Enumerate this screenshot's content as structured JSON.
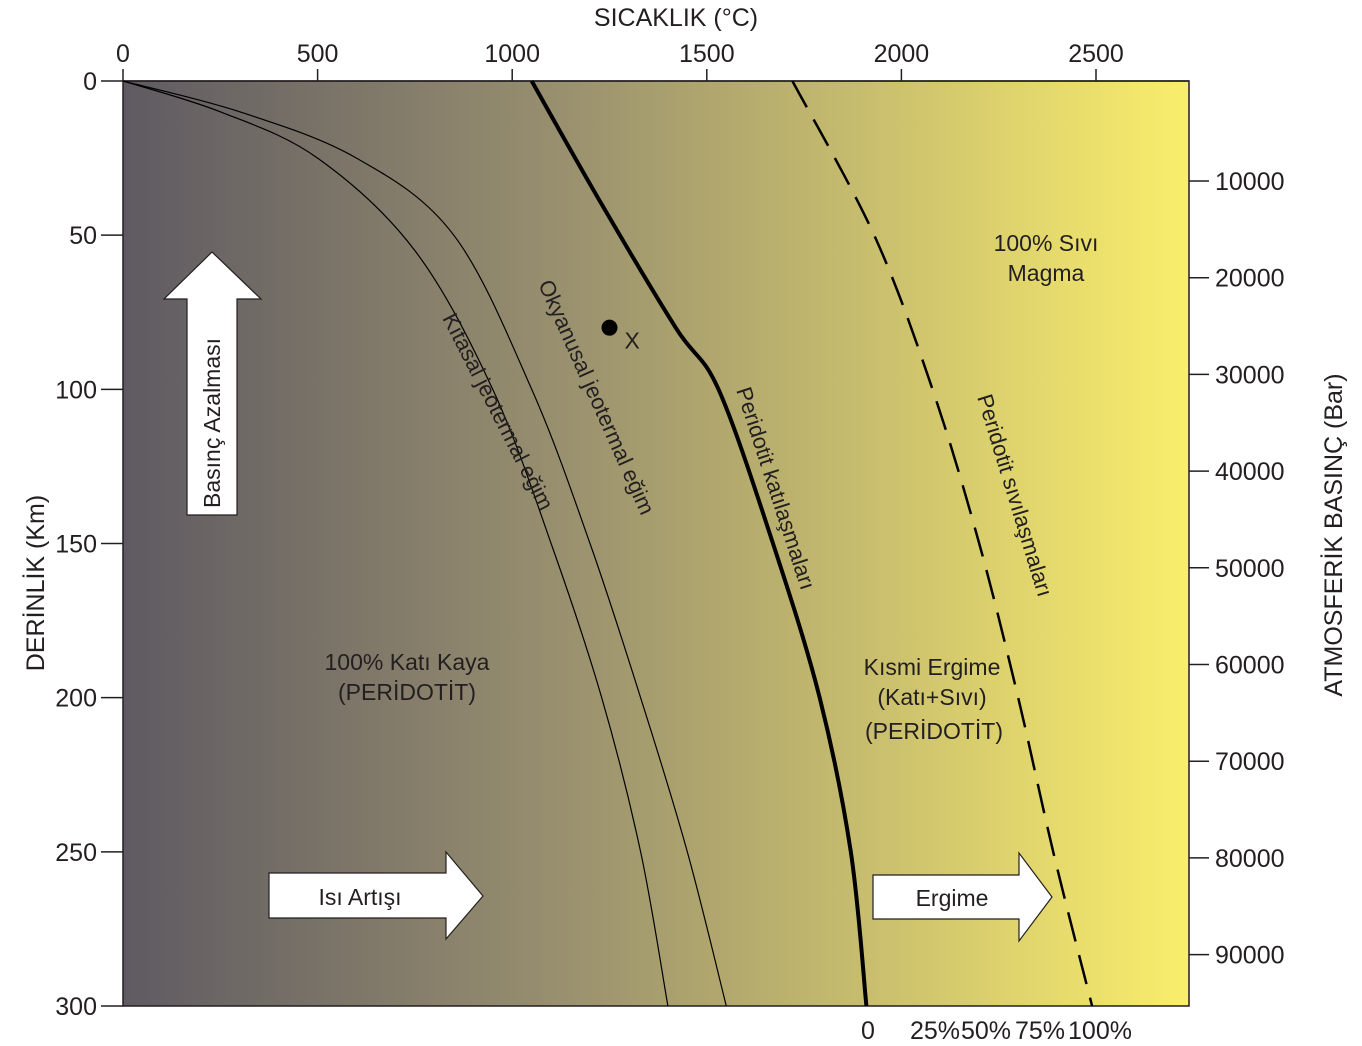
{
  "top_axis": {
    "title": "SICAKLIK (°C)",
    "ticks": [
      "0",
      "500",
      "1000",
      "1500",
      "2000",
      "2500"
    ]
  },
  "left_axis": {
    "title": "DERİNLİK (Km)",
    "ticks": [
      "0",
      "50",
      "100",
      "150",
      "200",
      "250",
      "300"
    ]
  },
  "right_axis": {
    "title": "ATMOSFERİK BASINÇ (Bar)",
    "ticks": [
      "10000",
      "20000",
      "30000",
      "40000",
      "50000",
      "60000",
      "70000",
      "80000",
      "90000"
    ]
  },
  "bottom_scale": {
    "ticks": [
      "0",
      "25%",
      "50%",
      "75%",
      "100%"
    ]
  },
  "regions": {
    "solid_line1": "100% Katı Kaya",
    "solid_line2": "(PERİDOTİT)",
    "partial_line1": "Kısmi Ergime",
    "partial_line2": "(Katı+Sıvı)",
    "partial_line3": "(PERİDOTİT)",
    "liquid_line1": "100% Sıvı",
    "liquid_line2": "Magma"
  },
  "curves": {
    "continental": "Kıtasal jeotermal eğim",
    "oceanic": "Okyanusal jeotermal eğim",
    "solidus": "Peridotit katılaşmaları",
    "liquidus": "Peridotit sıvılaşmaları"
  },
  "point_label": "X",
  "arrows": {
    "pressure": "Basınç Azalması",
    "heat": "Isı Artışı",
    "melt": "Ergime"
  },
  "colors": {
    "cold": "#5f5a62",
    "mid": "#9a916f",
    "hot": "#faee6c",
    "line": "#000000"
  },
  "chart_data": {
    "type": "line",
    "title": "",
    "xlabel": "SICAKLIK (°C)",
    "ylabel": "DERİNLİK (Km)",
    "y2label": "ATMOSFERİK BASINÇ (Bar)",
    "xlim": [
      0,
      2700
    ],
    "ylim": [
      300,
      0
    ],
    "series": [
      {
        "name": "Kıtasal jeotermal eğim",
        "style": "thin",
        "points": [
          [
            0,
            0
          ],
          [
            250,
            10
          ],
          [
            500,
            25
          ],
          [
            750,
            55
          ],
          [
            950,
            100
          ],
          [
            1100,
            150
          ],
          [
            1230,
            200
          ],
          [
            1330,
            250
          ],
          [
            1400,
            300
          ]
        ]
      },
      {
        "name": "Okyanusal jeotermal eğim",
        "style": "thin",
        "points": [
          [
            0,
            0
          ],
          [
            300,
            10
          ],
          [
            600,
            25
          ],
          [
            850,
            50
          ],
          [
            1050,
            100
          ],
          [
            1200,
            150
          ],
          [
            1330,
            200
          ],
          [
            1450,
            250
          ],
          [
            1550,
            300
          ]
        ]
      },
      {
        "name": "Peridotit katılaşmaları",
        "style": "thick",
        "points": [
          [
            1050,
            0
          ],
          [
            1230,
            40
          ],
          [
            1420,
            80
          ],
          [
            1530,
            100
          ],
          [
            1670,
            150
          ],
          [
            1790,
            200
          ],
          [
            1870,
            250
          ],
          [
            1910,
            300
          ]
        ]
      },
      {
        "name": "Peridotit sıvılaşmaları",
        "style": "dashed",
        "points": [
          [
            1720,
            0
          ],
          [
            1930,
            50
          ],
          [
            2080,
            100
          ],
          [
            2200,
            150
          ],
          [
            2300,
            200
          ],
          [
            2390,
            250
          ],
          [
            2490,
            300
          ]
        ]
      }
    ],
    "marker": {
      "label": "X",
      "x": 1250,
      "y": 80
    }
  }
}
